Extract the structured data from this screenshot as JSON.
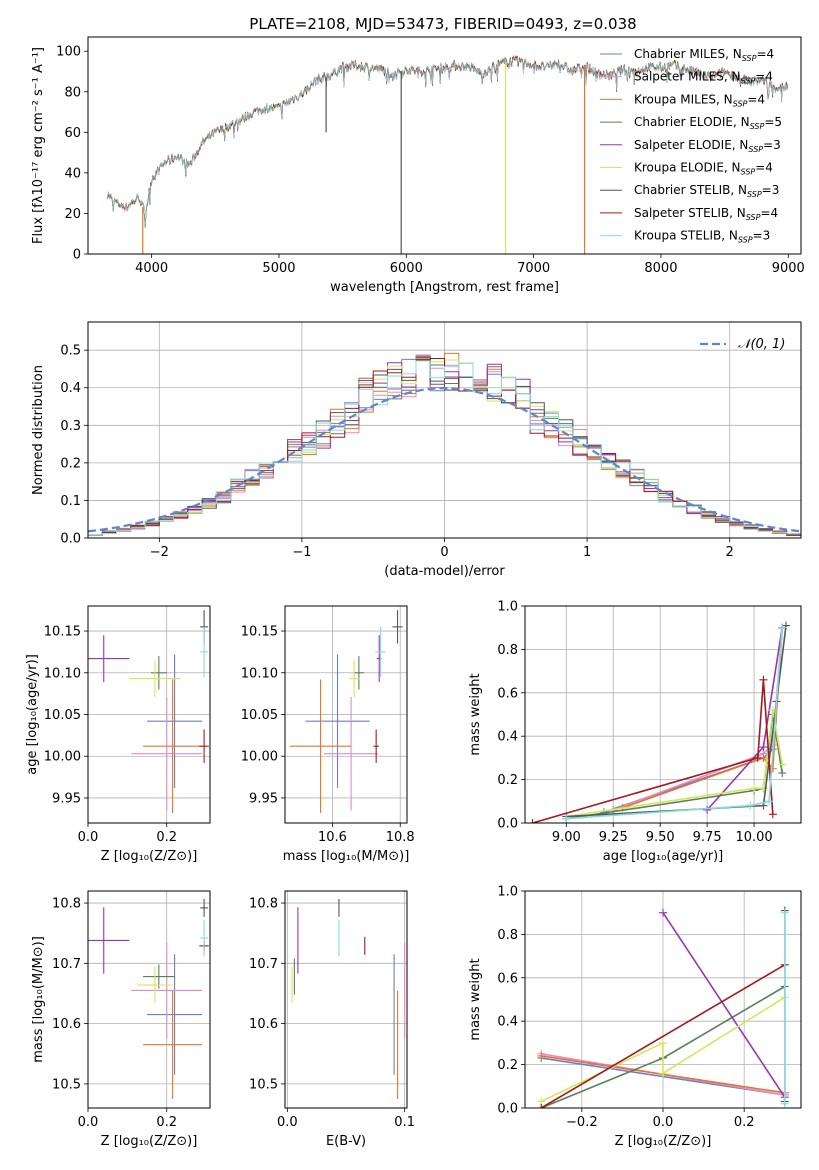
{
  "figure_title": "PLATE=2108, MJD=53473, FIBERID=0493, z=0.038",
  "colors": {
    "Chabrier MILES": "#6a7fd3",
    "Salpeter MILES": "#e58bc2",
    "Kroupa MILES": "#e2762a",
    "Chabrier ELODIE": "#5b7f5b",
    "Salpeter ELODIE": "#9a34b5",
    "Kroupa ELODIE": "#cfe95a",
    "Chabrier STELIB": "#555555",
    "Salpeter STELIB": "#a8181a",
    "Kroupa STELIB": "#86dcdc",
    "Gaussian": "#5b85d6"
  },
  "chart_data": [
    {
      "id": "spectrum",
      "type": "line",
      "xlabel": "wavelength [Angstrom, rest frame]",
      "ylabel": "Flux [fλ10⁻¹⁷ erg cm⁻² s⁻¹ A⁻¹]",
      "xlim": [
        3500,
        9100
      ],
      "ylim": [
        0,
        107
      ],
      "xticks": [
        4000,
        5000,
        6000,
        7000,
        8000,
        9000
      ],
      "yticks": [
        0,
        20,
        40,
        60,
        80,
        100
      ],
      "legend_position": "top-right",
      "legend": [
        "Chabrier MILES, N_SSP=4",
        "Salpeter MILES, N_SSP=4",
        "Kroupa MILES, N_SSP=4",
        "Chabrier ELODIE, N_SSP=5",
        "Salpeter ELODIE, N_SSP=3",
        "Kroupa ELODIE, N_SSP=4",
        "Chabrier STELIB, N_SSP=3",
        "Salpeter STELIB, N_SSP=4",
        "Kroupa STELIB, N_SSP=3"
      ],
      "continuum": {
        "x": [
          3650,
          3700,
          3800,
          3900,
          3950,
          4000,
          4100,
          4200,
          4300,
          4400,
          4500,
          4600,
          4700,
          4800,
          4900,
          5000,
          5100,
          5200,
          5300,
          5400,
          5500,
          5600,
          5700,
          5800,
          5900,
          6000,
          6100,
          6200,
          6300,
          6400,
          6500,
          6600,
          6700,
          6800,
          6900,
          7000,
          7100,
          7200,
          7300,
          7400,
          7500,
          7600,
          7700,
          7800,
          7900,
          8000,
          8100,
          8200,
          8300,
          8400,
          8500,
          8600,
          8700,
          8800,
          8900,
          9000
        ],
        "y": [
          30,
          26,
          23,
          28,
          20,
          37,
          45,
          48,
          44,
          55,
          60,
          63,
          66,
          70,
          72,
          72,
          76,
          80,
          86,
          88,
          92,
          93,
          92,
          91,
          89,
          91,
          90,
          91,
          92,
          93,
          92,
          89,
          93,
          95,
          95,
          93,
          92,
          94,
          90,
          93,
          89,
          88,
          91,
          90,
          92,
          92,
          93,
          91,
          89,
          87,
          90,
          87,
          85,
          86,
          82,
          83
        ]
      },
      "dips": [
        {
          "x": 3930,
          "depth_to": 0,
          "series": "Kroupa MILES"
        },
        {
          "x": 5370,
          "depth_to": 60,
          "series": "Chabrier STELIB"
        },
        {
          "x": 5960,
          "depth_to": 0,
          "series": "Chabrier STELIB"
        },
        {
          "x": 6780,
          "depth_to": 0,
          "series": "Kroupa ELODIE"
        },
        {
          "x": 7400,
          "depth_to": 0,
          "series": "Kroupa MILES"
        }
      ]
    },
    {
      "id": "residual_hist",
      "type": "step",
      "xlabel": "(data-model)/error",
      "ylabel": "Normed distribution",
      "xlim": [
        -2.5,
        2.5
      ],
      "ylim": [
        0,
        0.575
      ],
      "xticks": [
        -2,
        -1,
        0,
        1,
        2
      ],
      "yticks": [
        0.0,
        0.1,
        0.2,
        0.3,
        0.4,
        0.5
      ],
      "grid": true,
      "legend_position": "top-right",
      "legend": [
        "𝒩(0, 1)"
      ],
      "gaussian": {
        "mean": 0,
        "sigma": 1
      }
    },
    {
      "id": "age_vs_Z",
      "type": "errorbar",
      "xlabel": "Z [log₁₀(Z/Z⊙)]",
      "ylabel": "age  [log₁₀(age/yr)]",
      "xlim": [
        0.0,
        0.31
      ],
      "ylim": [
        9.92,
        10.18
      ],
      "xticks": [
        0.0,
        0.2
      ],
      "yticks": [
        9.95,
        10.0,
        10.05,
        10.1,
        10.15
      ],
      "grid": true,
      "points": [
        {
          "series": "Chabrier MILES",
          "x": 0.22,
          "xerr": 0.07,
          "y": 10.042,
          "yerr": 0.08
        },
        {
          "series": "Salpeter MILES",
          "x": 0.2,
          "xerr": 0.09,
          "y": 10.003,
          "yerr": 0.068
        },
        {
          "series": "Kroupa MILES",
          "x": 0.215,
          "xerr": 0.075,
          "y": 10.012,
          "yerr": 0.08
        },
        {
          "series": "Chabrier ELODIE",
          "x": 0.18,
          "xerr": 0.02,
          "y": 10.1,
          "yerr": 0.02
        },
        {
          "series": "Salpeter ELODIE",
          "x": 0.04,
          "xerr": 0.065,
          "y": 10.117,
          "yerr": 0.028
        },
        {
          "series": "Kroupa ELODIE",
          "x": 0.17,
          "xerr": 0.065,
          "y": 10.093,
          "yerr": 0.022
        },
        {
          "series": "Chabrier STELIB",
          "x": 0.295,
          "xerr": 0.01,
          "y": 10.155,
          "yerr": 0.02
        },
        {
          "series": "Salpeter STELIB",
          "x": 0.295,
          "xerr": 0.012,
          "y": 10.012,
          "yerr": 0.02
        },
        {
          "series": "Kroupa STELIB",
          "x": 0.295,
          "xerr": 0.01,
          "y": 10.125,
          "yerr": 0.03
        }
      ]
    },
    {
      "id": "age_vs_mass",
      "type": "errorbar",
      "xlabel": "mass [log₁₀(M/M⊙)]",
      "ylabel": "",
      "xlim": [
        10.46,
        10.82
      ],
      "ylim": [
        9.92,
        10.18
      ],
      "xticks": [
        10.6,
        10.8
      ],
      "yticks": [
        9.95,
        10.0,
        10.05,
        10.1,
        10.15
      ],
      "grid": true,
      "points": [
        {
          "series": "Chabrier MILES",
          "x": 10.615,
          "xerr": 0.095,
          "y": 10.042,
          "yerr": 0.08
        },
        {
          "series": "Salpeter MILES",
          "x": 10.655,
          "xerr": 0.08,
          "y": 10.003,
          "yerr": 0.068
        },
        {
          "series": "Kroupa MILES",
          "x": 10.565,
          "xerr": 0.09,
          "y": 10.012,
          "yerr": 0.08
        },
        {
          "series": "Chabrier ELODIE",
          "x": 10.678,
          "xerr": 0.015,
          "y": 10.1,
          "yerr": 0.02
        },
        {
          "series": "Salpeter ELODIE",
          "x": 10.738,
          "xerr": 0.007,
          "y": 10.117,
          "yerr": 0.028
        },
        {
          "series": "Kroupa ELODIE",
          "x": 10.664,
          "xerr": 0.015,
          "y": 10.093,
          "yerr": 0.022
        },
        {
          "series": "Chabrier STELIB",
          "x": 10.792,
          "xerr": 0.015,
          "y": 10.155,
          "yerr": 0.02
        },
        {
          "series": "Salpeter STELIB",
          "x": 10.729,
          "xerr": 0.008,
          "y": 10.012,
          "yerr": 0.02
        },
        {
          "series": "Kroupa STELIB",
          "x": 10.742,
          "xerr": 0.015,
          "y": 10.125,
          "yerr": 0.03
        }
      ]
    },
    {
      "id": "weight_vs_age",
      "type": "line",
      "xlabel": "age  [log₁₀(age/yr)]",
      "ylabel": "mass weight",
      "xlim": [
        8.78,
        10.25
      ],
      "ylim": [
        0,
        1
      ],
      "xticks": [
        9.0,
        9.25,
        9.5,
        9.75,
        10.0
      ],
      "yticks": [
        0.0,
        0.2,
        0.4,
        0.6,
        0.8,
        1.0
      ],
      "grid": true,
      "series": [
        {
          "name": "Chabrier MILES",
          "x": [
            9.2,
            10.05,
            10.1,
            10.15
          ],
          "y": [
            0.05,
            0.3,
            0.34,
            0.9
          ]
        },
        {
          "name": "Salpeter MILES",
          "x": [
            9.25,
            10.05,
            10.1,
            10.15
          ],
          "y": [
            0.06,
            0.32,
            0.36,
            0.9
          ]
        },
        {
          "name": "Kroupa MILES",
          "x": [
            9.3,
            10.05,
            10.1,
            10.15
          ],
          "y": [
            0.07,
            0.3,
            0.25,
            0.9
          ]
        },
        {
          "name": "Chabrier ELODIE",
          "x": [
            9.0,
            10.0,
            10.05,
            10.1,
            10.15
          ],
          "y": [
            0.02,
            0.15,
            0.16,
            0.5,
            0.23
          ]
        },
        {
          "name": "Salpeter ELODIE",
          "x": [
            9.75,
            10.05,
            10.15
          ],
          "y": [
            0.06,
            0.35,
            0.9
          ]
        },
        {
          "name": "Kroupa ELODIE",
          "x": [
            9.0,
            10.0,
            10.05,
            10.1,
            10.15
          ],
          "y": [
            0.03,
            0.16,
            0.16,
            0.52,
            0.27
          ]
        },
        {
          "name": "Chabrier STELIB",
          "x": [
            9.0,
            10.05,
            10.12,
            10.17
          ],
          "y": [
            0.03,
            0.08,
            0.56,
            0.91
          ]
        },
        {
          "name": "Salpeter STELIB",
          "x": [
            8.82,
            10.02,
            10.05,
            10.1
          ],
          "y": [
            0.0,
            0.3,
            0.66,
            0.04
          ]
        },
        {
          "name": "Kroupa STELIB",
          "x": [
            9.0,
            9.98,
            10.08,
            10.15
          ],
          "y": [
            0.02,
            0.08,
            0.1,
            0.9
          ]
        }
      ]
    },
    {
      "id": "mass_vs_Z",
      "type": "errorbar",
      "xlabel": "Z [log₁₀(Z/Z⊙)]",
      "ylabel": "mass [log₁₀(M/M⊙)]",
      "xlim": [
        0.0,
        0.31
      ],
      "ylim": [
        10.46,
        10.82
      ],
      "xticks": [
        0.0,
        0.2
      ],
      "yticks": [
        10.5,
        10.6,
        10.7,
        10.8
      ],
      "grid": true,
      "points": [
        {
          "series": "Chabrier MILES",
          "x": 0.22,
          "xerr": 0.07,
          "y": 10.615,
          "yerr": 0.1
        },
        {
          "series": "Salpeter MILES",
          "x": 0.2,
          "xerr": 0.09,
          "y": 10.655,
          "yerr": 0.08
        },
        {
          "series": "Kroupa MILES",
          "x": 0.215,
          "xerr": 0.075,
          "y": 10.565,
          "yerr": 0.09
        },
        {
          "series": "Chabrier ELODIE",
          "x": 0.18,
          "xerr": 0.04,
          "y": 10.678,
          "yerr": 0.02
        },
        {
          "series": "Salpeter ELODIE",
          "x": 0.04,
          "xerr": 0.065,
          "y": 10.738,
          "yerr": 0.055
        },
        {
          "series": "Kroupa ELODIE",
          "x": 0.17,
          "xerr": 0.045,
          "y": 10.664,
          "yerr": 0.03
        },
        {
          "series": "Chabrier STELIB",
          "x": 0.295,
          "xerr": 0.01,
          "y": 10.792,
          "yerr": 0.015
        },
        {
          "series": "Salpeter STELIB",
          "x": 0.295,
          "xerr": 0.012,
          "y": 10.729,
          "yerr": 0.008
        },
        {
          "series": "Kroupa STELIB",
          "x": 0.295,
          "xerr": 0.01,
          "y": 10.742,
          "yerr": 0.03
        }
      ]
    },
    {
      "id": "mass_vs_EBV",
      "type": "errorbar",
      "xlabel": "E(B-V)",
      "ylabel": "",
      "xlim": [
        -0.002,
        0.102
      ],
      "ylim": [
        10.46,
        10.82
      ],
      "xticks": [
        0.0,
        0.1
      ],
      "yticks": [
        10.5,
        10.6,
        10.7,
        10.8
      ],
      "grid": true,
      "points": [
        {
          "series": "Chabrier MILES",
          "x": 0.091,
          "xerr": 0.0,
          "y": 10.615,
          "yerr": 0.1
        },
        {
          "series": "Salpeter MILES",
          "x": 0.1,
          "xerr": 0.0,
          "y": 10.655,
          "yerr": 0.08
        },
        {
          "series": "Kroupa MILES",
          "x": 0.094,
          "xerr": 0.0,
          "y": 10.565,
          "yerr": 0.09
        },
        {
          "series": "Chabrier ELODIE",
          "x": 0.006,
          "xerr": 0.0,
          "y": 10.678,
          "yerr": 0.03
        },
        {
          "series": "Salpeter ELODIE",
          "x": 0.009,
          "xerr": 0.0,
          "y": 10.738,
          "yerr": 0.055
        },
        {
          "series": "Kroupa ELODIE",
          "x": 0.004,
          "xerr": 0.0,
          "y": 10.664,
          "yerr": 0.03
        },
        {
          "series": "Chabrier STELIB",
          "x": 0.044,
          "xerr": 0.0,
          "y": 10.792,
          "yerr": 0.015
        },
        {
          "series": "Salpeter STELIB",
          "x": 0.066,
          "xerr": 0.0,
          "y": 10.729,
          "yerr": 0.015
        },
        {
          "series": "Kroupa STELIB",
          "x": 0.044,
          "xerr": 0.0,
          "y": 10.742,
          "yerr": 0.03
        }
      ]
    },
    {
      "id": "weight_vs_Z",
      "type": "line",
      "xlabel": "Z [log₁₀(Z/Z⊙)]",
      "ylabel": "mass weight",
      "xlim": [
        -0.34,
        0.34
      ],
      "ylim": [
        0,
        1
      ],
      "xticks": [
        -0.2,
        0.0,
        0.2
      ],
      "yticks": [
        0.0,
        0.2,
        0.4,
        0.6,
        0.8,
        1.0
      ],
      "grid": true,
      "series": [
        {
          "name": "Chabrier MILES",
          "x": [
            -0.3,
            0.3
          ],
          "y": [
            0.23,
            0.06
          ]
        },
        {
          "name": "Salpeter MILES",
          "x": [
            -0.3,
            0.3
          ],
          "y": [
            0.25,
            0.06
          ]
        },
        {
          "name": "Kroupa MILES",
          "x": [
            -0.3,
            0.3
          ],
          "y": [
            0.24,
            0.07
          ]
        },
        {
          "name": "Chabrier ELODIE",
          "x": [
            -0.3,
            0.0,
            0.3
          ],
          "y": [
            0.0,
            0.23,
            0.56
          ]
        },
        {
          "name": "Salpeter ELODIE",
          "x": [
            0.0,
            0.3
          ],
          "y": [
            0.9,
            0.05
          ]
        },
        {
          "name": "Kroupa ELODIE",
          "x": [
            -0.3,
            0.0,
            0.0,
            0.3
          ],
          "y": [
            0.03,
            0.3,
            0.16,
            0.51
          ]
        },
        {
          "name": "Chabrier STELIB",
          "x": [
            0.3,
            0.3
          ],
          "y": [
            0.91,
            0.03
          ]
        },
        {
          "name": "Salpeter STELIB",
          "x": [
            -0.3,
            0.3
          ],
          "y": [
            0.0,
            0.66
          ]
        },
        {
          "name": "Kroupa STELIB",
          "x": [
            0.3,
            0.3
          ],
          "y": [
            0.9,
            0.02
          ]
        }
      ]
    }
  ]
}
